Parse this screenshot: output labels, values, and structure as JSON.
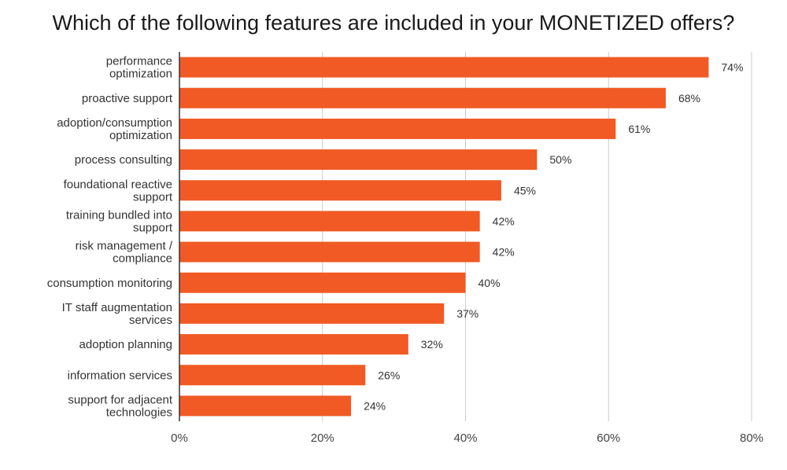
{
  "chart_data": {
    "type": "bar",
    "orientation": "horizontal",
    "title": "Which of the following features are included in your MONETIZED offers?",
    "categories": [
      [
        "performance",
        "optimization"
      ],
      [
        "proactive support"
      ],
      [
        "adoption/consumption",
        "optimization"
      ],
      [
        "process consulting"
      ],
      [
        "foundational reactive",
        "support"
      ],
      [
        "training bundled into",
        "support"
      ],
      [
        "risk management /",
        "compliance"
      ],
      [
        "consumption monitoring"
      ],
      [
        "IT staff augmentation",
        "services"
      ],
      [
        "adoption planning"
      ],
      [
        "information services"
      ],
      [
        "support for adjacent",
        "technologies"
      ]
    ],
    "values": [
      74,
      68,
      61,
      50,
      45,
      42,
      42,
      40,
      37,
      32,
      26,
      24
    ],
    "value_labels": [
      "74%",
      "68%",
      "61%",
      "50%",
      "45%",
      "42%",
      "42%",
      "40%",
      "37%",
      "32%",
      "26%",
      "24%"
    ],
    "xlim": [
      0,
      80
    ],
    "x_ticks": [
      0,
      20,
      40,
      60,
      80
    ],
    "x_tick_labels": [
      "0%",
      "20%",
      "40%",
      "60%",
      "80%"
    ],
    "grid": "vertical",
    "legend": "none",
    "colors": {
      "bar": "#f15a24",
      "grid": "#cccccc",
      "axis": "#333333"
    }
  }
}
